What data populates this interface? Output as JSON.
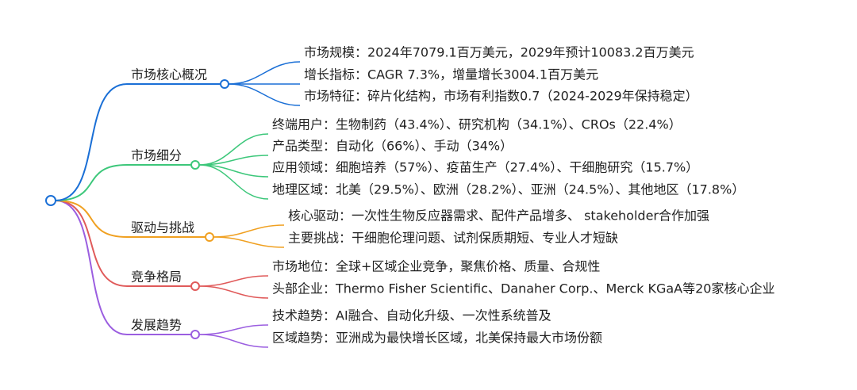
{
  "branches": [
    {
      "label": "市场核心概况",
      "children": [
        "市场规模：2024年7079.1百万美元，2029年预计10083.2百万美元",
        "增长指标：CAGR 7.3%，增量增长3004.1百万美元",
        "市场特征：碎片化结构，市场有利指数0.7（2024-2029年保持稳定）"
      ]
    },
    {
      "label": "市场细分",
      "children": [
        "终端用户：生物制药（43.4%）、研究机构（34.1%）、CROs（22.4%）",
        "产品类型：自动化（66%）、手动（34%）",
        "应用领域：细胞培养（57%）、疫苗生产（27.4%）、干细胞研究（15.7%）",
        "地理区域：北美（29.5%）、欧洲（28.2%）、亚洲（24.5%）、其他地区（17.8%）"
      ]
    },
    {
      "label": "驱动与挑战",
      "children": [
        "核心驱动：一次性生物反应器需求、配件产品增多、 stakeholder合作加强",
        "主要挑战：干细胞伦理问题、试剂保质期短、专业人才短缺"
      ]
    },
    {
      "label": "竞争格局",
      "children": [
        "市场地位：全球+区域企业竞争，聚焦价格、质量、合规性",
        "头部企业：Thermo Fisher Scientific、Danaher Corp.、Merck KGaA等20家核心企业"
      ]
    },
    {
      "label": "发展趋势",
      "children": [
        "技术趋势：AI融合、自动化升级、一次性系统普及",
        "区域趋势：亚洲成为最快增长区域，北美保持最大市场份额"
      ]
    }
  ]
}
